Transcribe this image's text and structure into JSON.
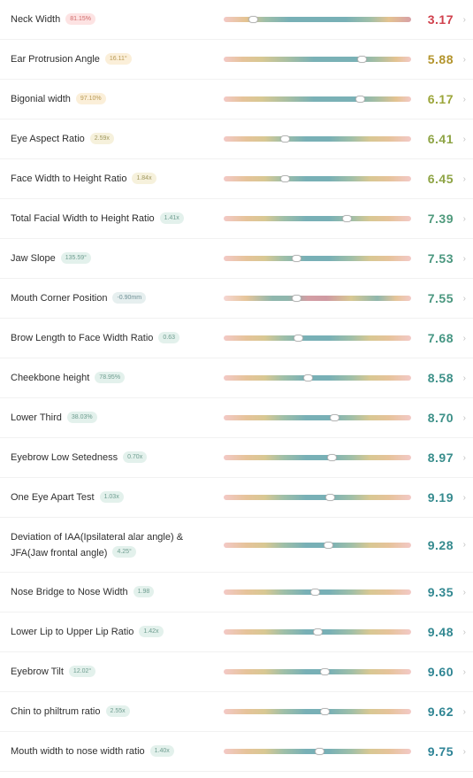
{
  "colors": {
    "bar_gradient_low_fail": "linear-gradient(90deg,#f3c9c6 0%,#e4c391 12%,#9fbfa8 22%,#78b0b6 35%,#78b0b6 65%,#9fbfa8 78%,#e4c391 88%,#d8a0a6 100%)",
    "bar_gradient_high_fail": "linear-gradient(90deg,#f3c9c6 0%,#e6c39a 10%,#d8c893 20%,#a8bfa2 34%,#7ab1b6 48%,#7ab1b6 70%,#a8bfa2 82%,#e4c391 92%,#f3c9c6 100%)",
    "bar_gradient_mid_fail": "linear-gradient(90deg,#f6d6d3 0%,#e6c59a 12%,#8fb7ad 26%,#8fb7ad 34%,#d39ea4 45%,#cf9aa2 55%,#d8c893 68%,#8fb7ad 82%,#e6c59a 92%,#f3c9c6 100%)",
    "bar_gradient_centered": "linear-gradient(90deg,#f3c9c6 0%,#e6c39a 12%,#d8c893 22%,#9fbfa8 32%,#78b0b6 44%,#78b0b6 56%,#9fbfa8 68%,#d8c893 78%,#e6c39a 88%,#f3c9c6 100%)"
  },
  "metrics": [
    {
      "label": "Neck Width",
      "badge": "81.15%",
      "score": "3.17",
      "position": 0.16,
      "gradient": "low_fail",
      "score_color": "#d0404c",
      "badge_bg": "#fde3e3",
      "badge_fg": "#d06a6a"
    },
    {
      "label": "Ear Protrusion Angle",
      "badge": "16.11°",
      "score": "5.88",
      "position": 0.74,
      "gradient": "high_fail",
      "score_color": "#b3942c",
      "badge_bg": "#fbefd9",
      "badge_fg": "#b99a55"
    },
    {
      "label": "Bigonial width",
      "badge": "97.10%",
      "score": "6.17",
      "position": 0.73,
      "gradient": "high_fail",
      "score_color": "#9ba539",
      "badge_bg": "#fbefd9",
      "badge_fg": "#b99a55"
    },
    {
      "label": "Eye Aspect Ratio",
      "badge": "2.59x",
      "score": "6.41",
      "position": 0.33,
      "gradient": "centered",
      "score_color": "#8ea445",
      "badge_bg": "#f6f1dc",
      "badge_fg": "#a09860"
    },
    {
      "label": "Face Width to Height Ratio",
      "badge": "1.84x",
      "score": "6.45",
      "position": 0.33,
      "gradient": "centered",
      "score_color": "#8ea445",
      "badge_bg": "#f6f1dc",
      "badge_fg": "#a09860"
    },
    {
      "label": "Total Facial Width to Height Ratio",
      "badge": "1.41x",
      "score": "7.39",
      "position": 0.66,
      "gradient": "centered",
      "score_color": "#4f9a7c",
      "badge_bg": "#e3f1ec",
      "badge_fg": "#6f9d90"
    },
    {
      "label": "Jaw Slope",
      "badge": "135.59°",
      "score": "7.53",
      "position": 0.39,
      "gradient": "centered",
      "score_color": "#4a977f",
      "badge_bg": "#e3f1ec",
      "badge_fg": "#6f9d90"
    },
    {
      "label": "Mouth Corner Position",
      "badge": "-0.90mm",
      "score": "7.55",
      "position": 0.39,
      "gradient": "mid_fail",
      "score_color": "#4a977f",
      "badge_bg": "#e6efef",
      "badge_fg": "#6f8f95"
    },
    {
      "label": "Brow Length to Face Width Ratio",
      "badge": "0.63",
      "score": "7.68",
      "position": 0.4,
      "gradient": "centered",
      "score_color": "#459683",
      "badge_bg": "#e3f1ec",
      "badge_fg": "#6f9d90"
    },
    {
      "label": "Cheekbone height",
      "badge": "78.95%",
      "score": "8.58",
      "position": 0.45,
      "gradient": "centered",
      "score_color": "#3d9088",
      "badge_bg": "#e3f1ec",
      "badge_fg": "#6f9d90"
    },
    {
      "label": "Lower Third",
      "badge": "38.03%",
      "score": "8.70",
      "position": 0.59,
      "gradient": "centered",
      "score_color": "#3d9088",
      "badge_bg": "#e3f1ec",
      "badge_fg": "#6f9d90"
    },
    {
      "label": "Eyebrow Low Setedness",
      "badge": "0.70x",
      "score": "8.97",
      "position": 0.58,
      "gradient": "centered",
      "score_color": "#388d8b",
      "badge_bg": "#e3f1ec",
      "badge_fg": "#6f9d90"
    },
    {
      "label": "One Eye Apart Test",
      "badge": "1.03x",
      "score": "9.19",
      "position": 0.57,
      "gradient": "centered",
      "score_color": "#358a8e",
      "badge_bg": "#e3f1ec",
      "badge_fg": "#6f9d90"
    },
    {
      "label": "Deviation of IAA(Ipsilateral alar angle) & JFA(Jaw frontal angle)",
      "badge": "4.25°",
      "score": "9.28",
      "position": 0.56,
      "gradient": "centered",
      "score_color": "#358a8e",
      "badge_bg": "#e3f1ec",
      "badge_fg": "#6f9d90",
      "tall": true
    },
    {
      "label": "Nose Bridge to Nose Width",
      "badge": "1.98",
      "score": "9.35",
      "position": 0.49,
      "gradient": "centered",
      "score_color": "#328891",
      "badge_bg": "#e3f1ec",
      "badge_fg": "#6f9d90"
    },
    {
      "label": "Lower Lip to Upper Lip Ratio",
      "badge": "1.42x",
      "score": "9.48",
      "position": 0.5,
      "gradient": "centered",
      "score_color": "#328891",
      "badge_bg": "#e3f1ec",
      "badge_fg": "#6f9d90"
    },
    {
      "label": "Eyebrow Tilt",
      "badge": "12.02°",
      "score": "9.60",
      "position": 0.54,
      "gradient": "centered",
      "score_color": "#2f8593",
      "badge_bg": "#e3f1ec",
      "badge_fg": "#6f9d90"
    },
    {
      "label": "Chin to philtrum ratio",
      "badge": "2.55x",
      "score": "9.62",
      "position": 0.54,
      "gradient": "centered",
      "score_color": "#2f8593",
      "badge_bg": "#e3f1ec",
      "badge_fg": "#6f9d90"
    },
    {
      "label": "Mouth width to nose width ratio",
      "badge": "1.40x",
      "score": "9.75",
      "position": 0.51,
      "gradient": "centered",
      "score_color": "#2d8396",
      "badge_bg": "#e3f1ec",
      "badge_fg": "#6f9d90"
    }
  ],
  "icons": {
    "chevron": "chevron-right-icon",
    "chevron_glyph": "›"
  }
}
